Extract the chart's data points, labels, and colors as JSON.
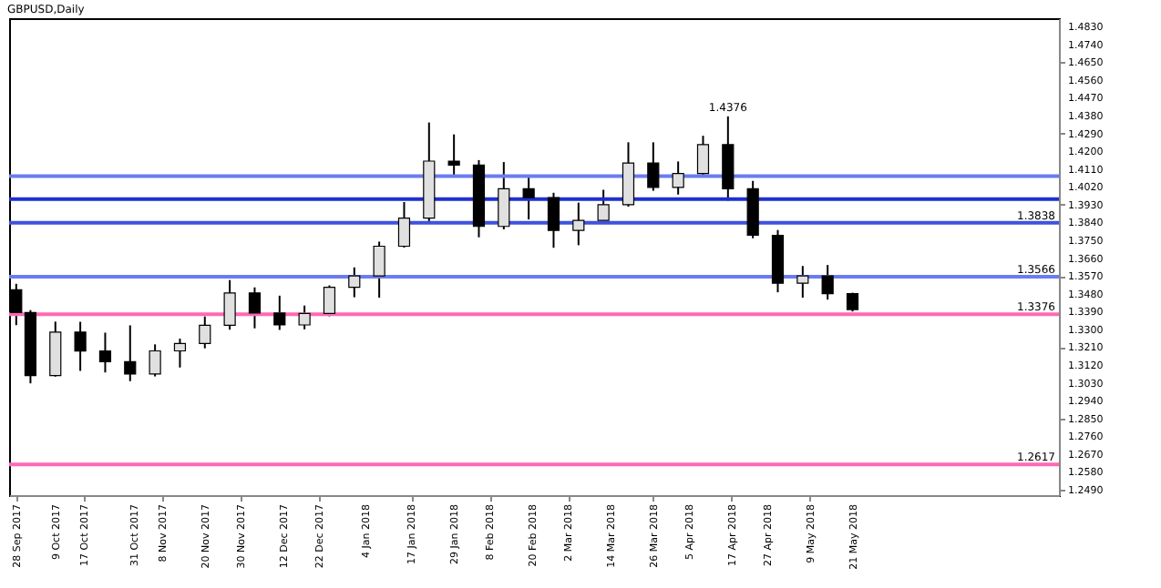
{
  "chart_data": {
    "type": "candlestick",
    "title": "GBPUSD,Daily",
    "x": [
      "2017-09-28",
      "2017-10-02",
      "2017-10-09",
      "2017-10-16",
      "2017-10-23",
      "2017-10-30",
      "2017-11-06",
      "2017-11-13",
      "2017-11-20",
      "2017-11-27",
      "2017-12-04",
      "2017-12-11",
      "2017-12-18",
      "2017-12-25",
      "2018-01-01",
      "2018-01-08",
      "2018-01-15",
      "2018-01-22",
      "2018-01-29",
      "2018-02-05",
      "2018-02-12",
      "2018-02-19",
      "2018-02-26",
      "2018-03-05",
      "2018-03-12",
      "2018-03-19",
      "2018-03-26",
      "2018-04-02",
      "2018-04-09",
      "2018-04-16",
      "2018-04-23",
      "2018-04-30",
      "2018-05-07",
      "2018-05-14",
      "2018-05-21"
    ],
    "ohlc": [
      [
        1.35,
        1.353,
        1.3321,
        1.3385
      ],
      [
        1.3385,
        1.3397,
        1.3027,
        1.3066
      ],
      [
        1.3066,
        1.3339,
        1.3061,
        1.3286
      ],
      [
        1.3286,
        1.3338,
        1.309,
        1.319
      ],
      [
        1.319,
        1.3283,
        1.3082,
        1.3136
      ],
      [
        1.3136,
        1.332,
        1.3038,
        1.3074
      ],
      [
        1.3074,
        1.3224,
        1.3062,
        1.3191
      ],
      [
        1.3191,
        1.3253,
        1.3107,
        1.3228
      ],
      [
        1.3228,
        1.3365,
        1.3204,
        1.332
      ],
      [
        1.332,
        1.3549,
        1.3298,
        1.3484
      ],
      [
        1.3484,
        1.3512,
        1.3305,
        1.3382
      ],
      [
        1.3382,
        1.347,
        1.3297,
        1.3322
      ],
      [
        1.3322,
        1.342,
        1.33,
        1.338
      ],
      [
        1.338,
        1.3522,
        1.3366,
        1.3512
      ],
      [
        1.3512,
        1.3613,
        1.3462,
        1.357
      ],
      [
        1.357,
        1.3743,
        1.346,
        1.372
      ],
      [
        1.372,
        1.3943,
        1.3713,
        1.3862
      ],
      [
        1.3862,
        1.4345,
        1.3838,
        1.415
      ],
      [
        1.415,
        1.4285,
        1.408,
        1.413
      ],
      [
        1.413,
        1.4155,
        1.3765,
        1.382
      ],
      [
        1.382,
        1.4145,
        1.3805,
        1.401
      ],
      [
        1.401,
        1.407,
        1.3855,
        1.3965
      ],
      [
        1.3965,
        1.399,
        1.3712,
        1.38
      ],
      [
        1.38,
        1.394,
        1.3725,
        1.385
      ],
      [
        1.385,
        1.4005,
        1.385,
        1.393
      ],
      [
        1.393,
        1.4245,
        1.392,
        1.414
      ],
      [
        1.414,
        1.4245,
        1.4,
        1.4017
      ],
      [
        1.4017,
        1.4148,
        1.3981,
        1.4087
      ],
      [
        1.4087,
        1.4278,
        1.408,
        1.4233
      ],
      [
        1.4233,
        1.4376,
        1.395,
        1.401
      ],
      [
        1.401,
        1.405,
        1.376,
        1.3775
      ],
      [
        1.3775,
        1.3802,
        1.3487,
        1.3533
      ],
      [
        1.3533,
        1.362,
        1.346,
        1.357
      ],
      [
        1.357,
        1.3625,
        1.345,
        1.348
      ],
      [
        1.348,
        1.3485,
        1.339,
        1.34
      ]
    ],
    "colors": [
      "#000000",
      "#000000",
      "#e0e0e0",
      "#000000",
      "#000000",
      "#000000",
      "#e0e0e0",
      "#e0e0e0",
      "#e0e0e0",
      "#e0e0e0",
      "#000000",
      "#000000",
      "#e0e0e0",
      "#e0e0e0",
      "#e0e0e0",
      "#e0e0e0",
      "#e0e0e0",
      "#e0e0e0",
      "#000000",
      "#000000",
      "#e0e0e0",
      "#000000",
      "#000000",
      "#e0e0e0",
      "#e0e0e0",
      "#e0e0e0",
      "#000000",
      "#e0e0e0",
      "#e0e0e0",
      "#000000",
      "#000000",
      "#000000",
      "#e0e0e0",
      "#000000",
      "#000000"
    ],
    "xlim": [
      "2017-09-26",
      "2018-07-18"
    ],
    "xticks": [
      {
        "value": "2017-09-28",
        "label": "28 Sep 2017"
      },
      {
        "value": "2017-10-09",
        "label": "9 Oct 2017"
      },
      {
        "value": "2017-10-17",
        "label": "17 Oct 2017"
      },
      {
        "value": "2017-10-31",
        "label": "31 Oct 2017"
      },
      {
        "value": "2017-11-08",
        "label": "8 Nov 2017"
      },
      {
        "value": "2017-11-20",
        "label": "20 Nov 2017"
      },
      {
        "value": "2017-11-30",
        "label": "30 Nov 2017"
      },
      {
        "value": "2017-12-12",
        "label": "12 Dec 2017"
      },
      {
        "value": "2017-12-22",
        "label": "22 Dec 2017"
      },
      {
        "value": "2018-01-04",
        "label": "4 Jan 2018"
      },
      {
        "value": "2018-01-17",
        "label": "17 Jan 2018"
      },
      {
        "value": "2018-01-29",
        "label": "29 Jan 2018"
      },
      {
        "value": "2018-02-08",
        "label": "8 Feb 2018"
      },
      {
        "value": "2018-02-20",
        "label": "20 Feb 2018"
      },
      {
        "value": "2018-03-02",
        "label": "2 Mar 2018"
      },
      {
        "value": "2018-03-14",
        "label": "14 Mar 2018"
      },
      {
        "value": "2018-03-26",
        "label": "26 Mar 2018"
      },
      {
        "value": "2018-04-05",
        "label": "5 Apr 2018"
      },
      {
        "value": "2018-04-17",
        "label": "17 Apr 2018"
      },
      {
        "value": "2018-04-27",
        "label": "27 Apr 2018"
      },
      {
        "value": "2018-05-09",
        "label": "9 May 2018"
      },
      {
        "value": "2018-05-21",
        "label": "21 May 2018"
      }
    ],
    "ylim": [
      1.2462,
      1.4872
    ],
    "yticks": [
      {
        "value": 1.249,
        "label": "1.2490"
      },
      {
        "value": 1.258,
        "label": "1.2580"
      },
      {
        "value": 1.267,
        "label": "1.2670"
      },
      {
        "value": 1.276,
        "label": "1.2760"
      },
      {
        "value": 1.285,
        "label": "1.2850"
      },
      {
        "value": 1.294,
        "label": "1.2940"
      },
      {
        "value": 1.303,
        "label": "1.3030"
      },
      {
        "value": 1.312,
        "label": "1.3120"
      },
      {
        "value": 1.321,
        "label": "1.3210"
      },
      {
        "value": 1.33,
        "label": "1.3300"
      },
      {
        "value": 1.339,
        "label": "1.3390"
      },
      {
        "value": 1.348,
        "label": "1.3480"
      },
      {
        "value": 1.357,
        "label": "1.3570"
      },
      {
        "value": 1.366,
        "label": "1.3660"
      },
      {
        "value": 1.375,
        "label": "1.3750"
      },
      {
        "value": 1.384,
        "label": "1.3840"
      },
      {
        "value": 1.393,
        "label": "1.3930"
      },
      {
        "value": 1.402,
        "label": "1.4020"
      },
      {
        "value": 1.411,
        "label": "1.4110"
      },
      {
        "value": 1.42,
        "label": "1.4200"
      },
      {
        "value": 1.429,
        "label": "1.4290"
      },
      {
        "value": 1.438,
        "label": "1.4380"
      },
      {
        "value": 1.447,
        "label": "1.4470"
      },
      {
        "value": 1.456,
        "label": "1.4560"
      },
      {
        "value": 1.465,
        "label": "1.4650"
      },
      {
        "value": 1.474,
        "label": "1.4740"
      },
      {
        "value": 1.483,
        "label": "1.4830"
      }
    ],
    "ref_lines": [
      {
        "axis": "y",
        "value": 1.3376,
        "label": "1.3376",
        "color": "#ff69b4"
      },
      {
        "axis": "y",
        "value": 1.2617,
        "label": "1.2617",
        "color": "#ff69b4"
      },
      {
        "axis": "y",
        "value": 1.3566,
        "label": "1.3566",
        "color": "#6b7cf0"
      },
      {
        "axis": "y",
        "value": 1.3838,
        "label": "1.3838",
        "color": "#3f51e0"
      },
      {
        "axis": "y",
        "value": 1.3958,
        "color": "#1f2fd0"
      },
      {
        "axis": "y",
        "value": 1.4074,
        "color": "#6b7cf0"
      }
    ],
    "annotations": [
      {
        "text": "1.4376",
        "x": "2018-04-16",
        "y": 1.4376
      }
    ],
    "grid": false
  }
}
